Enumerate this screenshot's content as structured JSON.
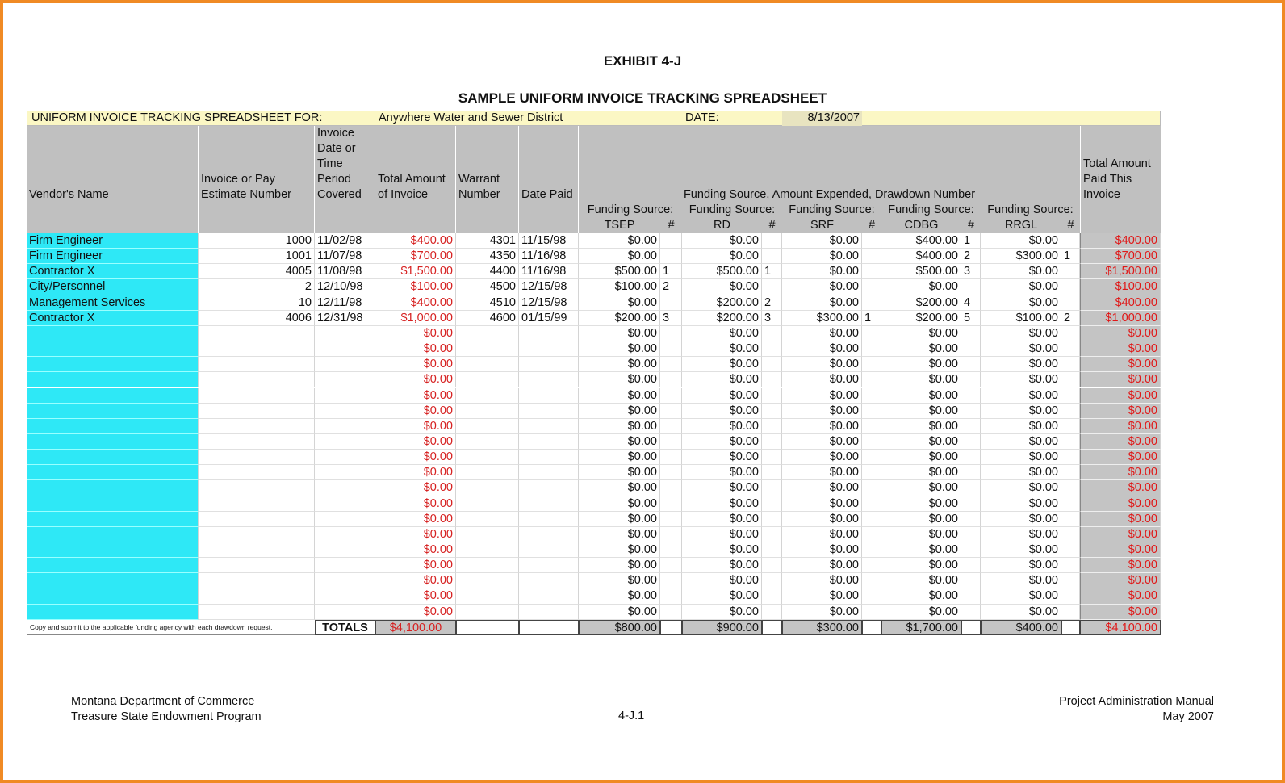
{
  "header": {
    "exhibit": "EXHIBIT 4-J",
    "title": "SAMPLE UNIFORM INVOICE TRACKING SPREADSHEET"
  },
  "info": {
    "label": "UNIFORM INVOICE TRACKING SPREADSHEET FOR:",
    "district": "Anywhere Water and Sewer District",
    "date_label": "DATE:",
    "date": "8/13/2007"
  },
  "table": {
    "columns": {
      "vendor": "Vendor's Name",
      "number": "Invoice or Pay Estimate Number",
      "period": "Invoice Date or Time Period Covered",
      "total": "Total Amount of Invoice",
      "warrant": "Warrant Number",
      "date_paid": "Date Paid",
      "funding": "Funding Source, Amount Expended, Drawdown Number",
      "total_paid": "Total Amount Paid This Invoice"
    },
    "sources": [
      {
        "label": "Funding Source:",
        "name": "TSEP",
        "hash": "#"
      },
      {
        "label": "Funding Source:",
        "name": "RD",
        "hash": "#"
      },
      {
        "label": "Funding Source:",
        "name": "SRF",
        "hash": "#"
      },
      {
        "label": "Funding Source:",
        "name": "CDBG",
        "hash": "#"
      },
      {
        "label": "Funding Source:",
        "name": "RRGL",
        "hash": "#"
      }
    ],
    "rows": [
      [
        "Firm Engineer",
        1000,
        "11/02/98",
        "$400.00",
        4301,
        "11/15/98",
        "$0.00",
        null,
        "$0.00",
        null,
        "$0.00",
        null,
        "$400.00",
        1,
        "$0.00",
        null,
        "$400.00"
      ],
      [
        "Firm Engineer",
        1001,
        "11/07/98",
        "$700.00",
        4350,
        "11/16/98",
        "$0.00",
        null,
        "$0.00",
        null,
        "$0.00",
        null,
        "$400.00",
        2,
        "$300.00",
        1,
        "$700.00"
      ],
      [
        "Contractor X",
        4005,
        "11/08/98",
        "$1,500.00",
        4400,
        "11/16/98",
        "$500.00",
        1,
        "$500.00",
        1,
        "$0.00",
        null,
        "$500.00",
        3,
        "$0.00",
        null,
        "$1,500.00"
      ],
      [
        "City/Personnel",
        2,
        "12/10/98",
        "$100.00",
        4500,
        "12/15/98",
        "$100.00",
        2,
        "$0.00",
        null,
        "$0.00",
        null,
        "$0.00",
        null,
        "$0.00",
        null,
        "$100.00"
      ],
      [
        "Management Services",
        10,
        "12/11/98",
        "$400.00",
        4510,
        "12/15/98",
        "$0.00",
        null,
        "$200.00",
        2,
        "$0.00",
        null,
        "$200.00",
        4,
        "$0.00",
        null,
        "$400.00"
      ],
      [
        "Contractor X",
        4006,
        "12/31/98",
        "$1,000.00",
        4600,
        "01/15/99",
        "$200.00",
        3,
        "$200.00",
        3,
        "$300.00",
        1,
        "$200.00",
        5,
        "$100.00",
        2,
        "$1,000.00"
      ],
      [
        null,
        null,
        null,
        "$0.00",
        null,
        null,
        "$0.00",
        null,
        "$0.00",
        null,
        "$0.00",
        null,
        "$0.00",
        null,
        "$0.00",
        null,
        "$0.00"
      ],
      [
        null,
        null,
        null,
        "$0.00",
        null,
        null,
        "$0.00",
        null,
        "$0.00",
        null,
        "$0.00",
        null,
        "$0.00",
        null,
        "$0.00",
        null,
        "$0.00"
      ],
      [
        null,
        null,
        null,
        "$0.00",
        null,
        null,
        "$0.00",
        null,
        "$0.00",
        null,
        "$0.00",
        null,
        "$0.00",
        null,
        "$0.00",
        null,
        "$0.00"
      ],
      [
        null,
        null,
        null,
        "$0.00",
        null,
        null,
        "$0.00",
        null,
        "$0.00",
        null,
        "$0.00",
        null,
        "$0.00",
        null,
        "$0.00",
        null,
        "$0.00"
      ],
      [
        null,
        null,
        null,
        "$0.00",
        null,
        null,
        "$0.00",
        null,
        "$0.00",
        null,
        "$0.00",
        null,
        "$0.00",
        null,
        "$0.00",
        null,
        "$0.00"
      ],
      [
        null,
        null,
        null,
        "$0.00",
        null,
        null,
        "$0.00",
        null,
        "$0.00",
        null,
        "$0.00",
        null,
        "$0.00",
        null,
        "$0.00",
        null,
        "$0.00"
      ],
      [
        null,
        null,
        null,
        "$0.00",
        null,
        null,
        "$0.00",
        null,
        "$0.00",
        null,
        "$0.00",
        null,
        "$0.00",
        null,
        "$0.00",
        null,
        "$0.00"
      ],
      [
        null,
        null,
        null,
        "$0.00",
        null,
        null,
        "$0.00",
        null,
        "$0.00",
        null,
        "$0.00",
        null,
        "$0.00",
        null,
        "$0.00",
        null,
        "$0.00"
      ],
      [
        null,
        null,
        null,
        "$0.00",
        null,
        null,
        "$0.00",
        null,
        "$0.00",
        null,
        "$0.00",
        null,
        "$0.00",
        null,
        "$0.00",
        null,
        "$0.00"
      ],
      [
        null,
        null,
        null,
        "$0.00",
        null,
        null,
        "$0.00",
        null,
        "$0.00",
        null,
        "$0.00",
        null,
        "$0.00",
        null,
        "$0.00",
        null,
        "$0.00"
      ],
      [
        null,
        null,
        null,
        "$0.00",
        null,
        null,
        "$0.00",
        null,
        "$0.00",
        null,
        "$0.00",
        null,
        "$0.00",
        null,
        "$0.00",
        null,
        "$0.00"
      ],
      [
        null,
        null,
        null,
        "$0.00",
        null,
        null,
        "$0.00",
        null,
        "$0.00",
        null,
        "$0.00",
        null,
        "$0.00",
        null,
        "$0.00",
        null,
        "$0.00"
      ],
      [
        null,
        null,
        null,
        "$0.00",
        null,
        null,
        "$0.00",
        null,
        "$0.00",
        null,
        "$0.00",
        null,
        "$0.00",
        null,
        "$0.00",
        null,
        "$0.00"
      ],
      [
        null,
        null,
        null,
        "$0.00",
        null,
        null,
        "$0.00",
        null,
        "$0.00",
        null,
        "$0.00",
        null,
        "$0.00",
        null,
        "$0.00",
        null,
        "$0.00"
      ],
      [
        null,
        null,
        null,
        "$0.00",
        null,
        null,
        "$0.00",
        null,
        "$0.00",
        null,
        "$0.00",
        null,
        "$0.00",
        null,
        "$0.00",
        null,
        "$0.00"
      ],
      [
        null,
        null,
        null,
        "$0.00",
        null,
        null,
        "$0.00",
        null,
        "$0.00",
        null,
        "$0.00",
        null,
        "$0.00",
        null,
        "$0.00",
        null,
        "$0.00"
      ],
      [
        null,
        null,
        null,
        "$0.00",
        null,
        null,
        "$0.00",
        null,
        "$0.00",
        null,
        "$0.00",
        null,
        "$0.00",
        null,
        "$0.00",
        null,
        "$0.00"
      ],
      [
        null,
        null,
        null,
        "$0.00",
        null,
        null,
        "$0.00",
        null,
        "$0.00",
        null,
        "$0.00",
        null,
        "$0.00",
        null,
        "$0.00",
        null,
        "$0.00"
      ],
      [
        null,
        null,
        null,
        "$0.00",
        null,
        null,
        "$0.00",
        null,
        "$0.00",
        null,
        "$0.00",
        null,
        "$0.00",
        null,
        "$0.00",
        null,
        "$0.00"
      ]
    ],
    "totals": {
      "note": "Copy and submit to the applicable funding agency with each drawdown request.",
      "label": "TOTALS",
      "total": "$4,100.00",
      "sources": [
        "$800.00",
        "$900.00",
        "$300.00",
        "$1,700.00",
        "$400.00"
      ],
      "total_paid": "$4,100.00"
    }
  },
  "footer": {
    "left": [
      "Montana Department of Commerce",
      "Treasure State Endowment Program"
    ],
    "center": "4-J.1",
    "right": [
      "Project Administration Manual",
      "May 2007"
    ]
  }
}
